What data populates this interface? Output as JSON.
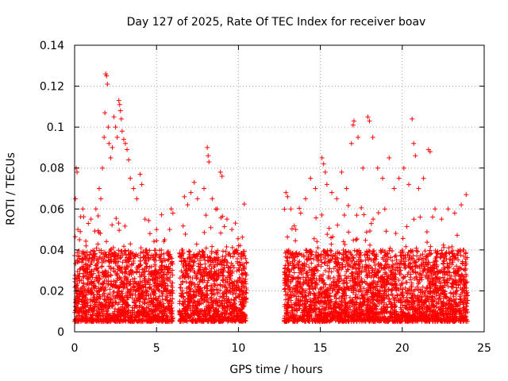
{
  "chart_data": {
    "type": "scatter",
    "title": "Day 127 of 2025, Rate Of TEC Index for receiver boav",
    "xlabel": "GPS time / hours",
    "ylabel": "ROTI / TECUs",
    "xlim": [
      0,
      25
    ],
    "ylim": [
      0,
      0.14
    ],
    "xticks": [
      0,
      5,
      10,
      15,
      20,
      25
    ],
    "yticks": [
      0,
      0.02,
      0.04,
      0.06,
      0.08,
      0.1,
      0.12,
      0.14
    ],
    "xtick_labels": [
      "0",
      "5",
      "10",
      "15",
      "20",
      "25"
    ],
    "ytick_labels": [
      "0",
      "0.02",
      "0.04",
      "0.06",
      "0.08",
      "0.1",
      "0.12",
      "0.14"
    ],
    "grid": true,
    "marker": "+",
    "series": [
      {
        "color": "#ff0000",
        "points": [
          [
            0.05,
            0.065
          ],
          [
            0.1,
            0.08
          ],
          [
            0.15,
            0.078
          ],
          [
            0.2,
            0.05
          ],
          [
            0.3,
            0.045
          ],
          [
            0.5,
            0.06
          ],
          [
            0.7,
            0.042
          ],
          [
            1.0,
            0.055
          ],
          [
            1.3,
            0.06
          ],
          [
            1.5,
            0.07
          ],
          [
            1.6,
            0.065
          ],
          [
            1.7,
            0.08
          ],
          [
            1.8,
            0.095
          ],
          [
            1.85,
            0.107
          ],
          [
            1.9,
            0.126
          ],
          [
            1.95,
            0.125
          ],
          [
            2.0,
            0.121
          ],
          [
            2.05,
            0.1
          ],
          [
            2.1,
            0.092
          ],
          [
            2.2,
            0.085
          ],
          [
            2.3,
            0.09
          ],
          [
            2.4,
            0.105
          ],
          [
            2.5,
            0.1
          ],
          [
            2.6,
            0.095
          ],
          [
            2.7,
            0.113
          ],
          [
            2.75,
            0.111
          ],
          [
            2.8,
            0.108
          ],
          [
            2.85,
            0.104
          ],
          [
            2.9,
            0.098
          ],
          [
            3.0,
            0.094
          ],
          [
            3.1,
            0.092
          ],
          [
            3.2,
            0.089
          ],
          [
            3.3,
            0.084
          ],
          [
            3.4,
            0.075
          ],
          [
            3.6,
            0.07
          ],
          [
            3.8,
            0.065
          ],
          [
            4.0,
            0.077
          ],
          [
            4.1,
            0.072
          ],
          [
            4.3,
            0.055
          ],
          [
            4.6,
            0.048
          ],
          [
            5.0,
            0.05
          ],
          [
            5.5,
            0.045
          ],
          [
            5.8,
            0.05
          ],
          [
            5.9,
            0.06
          ],
          [
            6.0,
            0.058
          ],
          [
            6.7,
            0.066
          ],
          [
            6.9,
            0.062
          ],
          [
            7.1,
            0.068
          ],
          [
            7.3,
            0.073
          ],
          [
            7.5,
            0.065
          ],
          [
            7.9,
            0.07
          ],
          [
            8.1,
            0.09
          ],
          [
            8.15,
            0.086
          ],
          [
            8.2,
            0.083
          ],
          [
            8.4,
            0.065
          ],
          [
            8.7,
            0.06
          ],
          [
            8.9,
            0.078
          ],
          [
            9.0,
            0.076
          ],
          [
            9.3,
            0.055
          ],
          [
            9.6,
            0.05
          ],
          [
            10.0,
            0.042
          ],
          [
            10.3,
            0.038
          ],
          [
            12.9,
            0.068
          ],
          [
            13.0,
            0.066
          ],
          [
            13.2,
            0.06
          ],
          [
            13.5,
            0.05
          ],
          [
            13.8,
            0.058
          ],
          [
            14.1,
            0.065
          ],
          [
            14.4,
            0.075
          ],
          [
            14.7,
            0.07
          ],
          [
            15.1,
            0.085
          ],
          [
            15.2,
            0.082
          ],
          [
            15.3,
            0.078
          ],
          [
            15.4,
            0.072
          ],
          [
            15.7,
            0.068
          ],
          [
            16.0,
            0.065
          ],
          [
            16.3,
            0.078
          ],
          [
            16.6,
            0.07
          ],
          [
            16.9,
            0.092
          ],
          [
            17.0,
            0.101
          ],
          [
            17.05,
            0.103
          ],
          [
            17.3,
            0.095
          ],
          [
            17.6,
            0.08
          ],
          [
            17.9,
            0.105
          ],
          [
            18.0,
            0.103
          ],
          [
            18.2,
            0.095
          ],
          [
            18.5,
            0.08
          ],
          [
            18.8,
            0.075
          ],
          [
            19.2,
            0.085
          ],
          [
            19.5,
            0.07
          ],
          [
            19.8,
            0.075
          ],
          [
            20.1,
            0.08
          ],
          [
            20.4,
            0.072
          ],
          [
            20.6,
            0.104
          ],
          [
            20.7,
            0.092
          ],
          [
            20.8,
            0.086
          ],
          [
            21.0,
            0.07
          ],
          [
            21.3,
            0.075
          ],
          [
            21.6,
            0.089
          ],
          [
            21.7,
            0.088
          ],
          [
            22.0,
            0.06
          ],
          [
            22.4,
            0.055
          ],
          [
            22.8,
            0.06
          ],
          [
            23.2,
            0.058
          ],
          [
            23.6,
            0.062
          ],
          [
            23.9,
            0.067
          ]
        ]
      }
    ]
  }
}
